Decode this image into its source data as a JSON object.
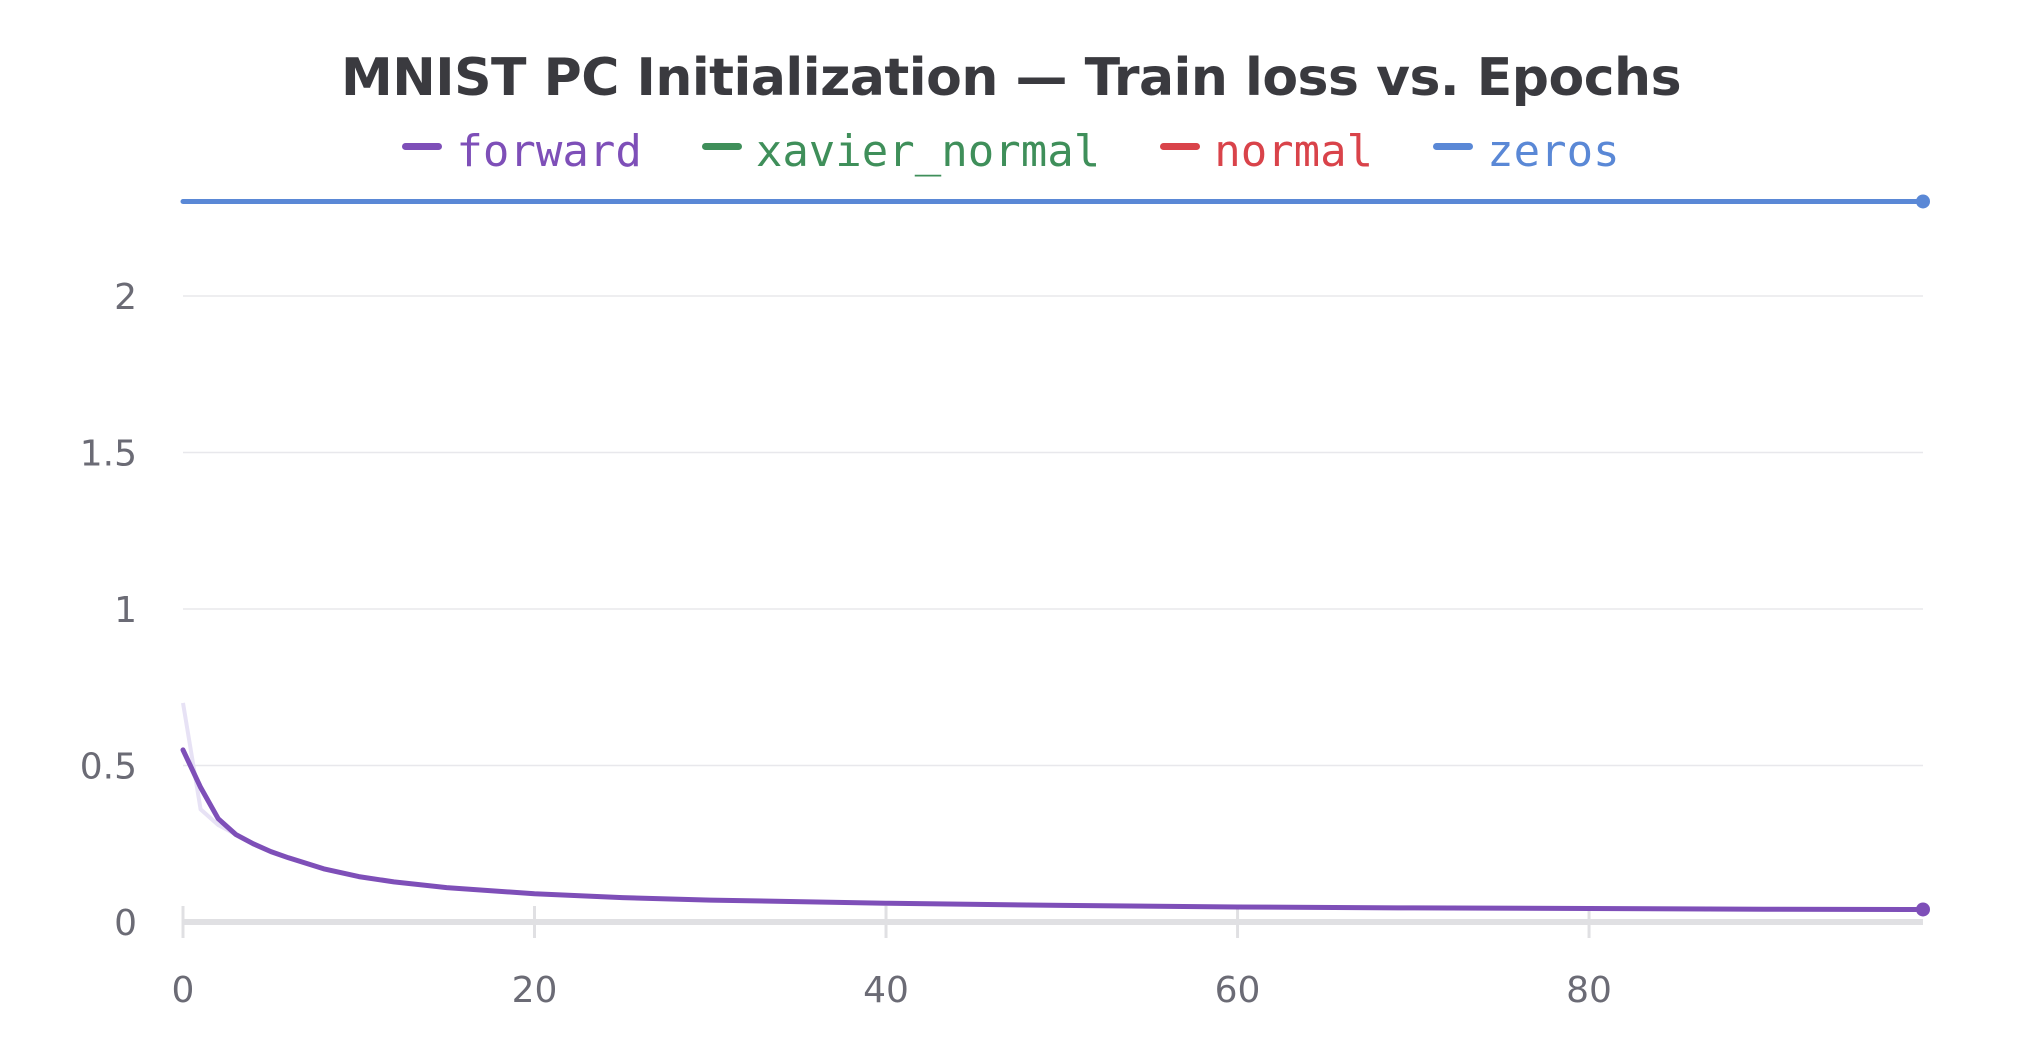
{
  "chart_data": {
    "type": "line",
    "title": "MNIST PC Initialization — Train loss vs. Epochs",
    "xlabel": "",
    "ylabel": "",
    "xlim": [
      0,
      99
    ],
    "ylim": [
      0,
      2.3
    ],
    "x_ticks": [
      0,
      20,
      40,
      60,
      80
    ],
    "x_tick_labels": [
      "0",
      "20",
      "40",
      "60",
      "80"
    ],
    "y_ticks": [
      0,
      0.5,
      1,
      1.5,
      2
    ],
    "y_tick_labels": [
      "0",
      "0.5",
      "1",
      "1.5",
      "2"
    ],
    "grid": true,
    "legend_position": "top-center",
    "series": [
      {
        "name": "forward",
        "color": "#7e4fb8",
        "x": [
          0,
          1,
          2,
          3,
          4,
          5,
          6,
          8,
          10,
          12,
          15,
          20,
          25,
          30,
          40,
          50,
          60,
          70,
          80,
          90,
          99
        ],
        "y": [
          0.55,
          0.43,
          0.33,
          0.28,
          0.25,
          0.225,
          0.205,
          0.17,
          0.145,
          0.128,
          0.11,
          0.09,
          0.078,
          0.07,
          0.06,
          0.053,
          0.048,
          0.045,
          0.043,
          0.041,
          0.04
        ]
      },
      {
        "name": "xavier_normal",
        "color": "#3f8f5a",
        "x": [],
        "y": []
      },
      {
        "name": "normal",
        "color": "#d9434a",
        "x": [],
        "y": []
      },
      {
        "name": "zeros",
        "color": "#5a88d6",
        "x": [
          0,
          99
        ],
        "y": [
          2.302,
          2.302
        ]
      }
    ]
  }
}
